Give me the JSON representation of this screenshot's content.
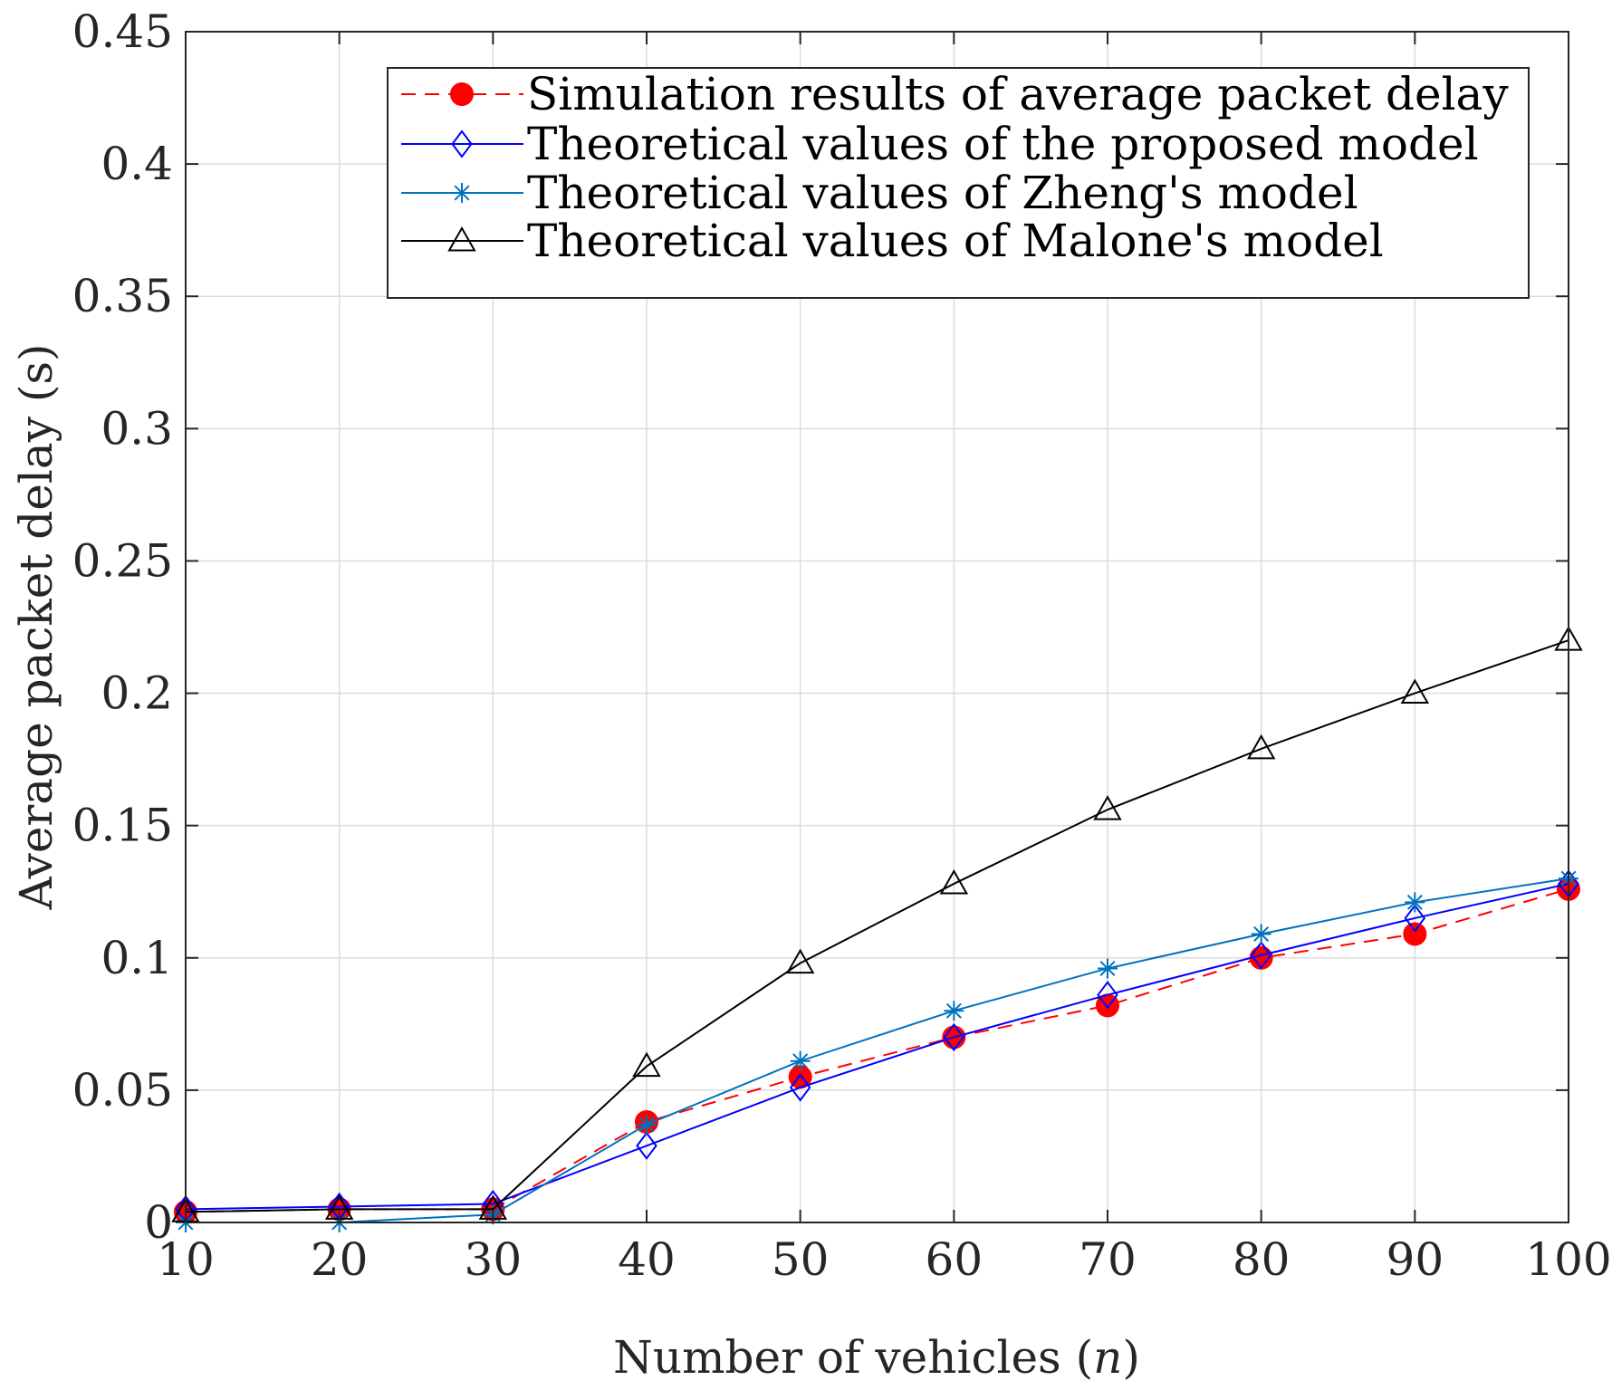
{
  "chart_data": {
    "type": "line",
    "title": "",
    "xlabel": "Number of vehicles (",
    "xlabel_var": "n",
    "xlabel_end": ")",
    "ylabel": "Average packet delay (s)",
    "xlim": [
      10,
      100
    ],
    "ylim": [
      0,
      0.45
    ],
    "grid": true,
    "legend_position": "top-right",
    "x": [
      10,
      20,
      30,
      40,
      50,
      60,
      70,
      80,
      90,
      100
    ],
    "x_tick_labels": [
      "10",
      "20",
      "30",
      "40",
      "50",
      "60",
      "70",
      "80",
      "90",
      "100"
    ],
    "y_ticks": [
      0,
      0.05,
      0.1,
      0.15,
      0.2,
      0.25,
      0.3,
      0.35,
      0.4,
      0.45
    ],
    "y_tick_labels": [
      "0",
      "0.05",
      "0.1",
      "0.15",
      "0.2",
      "0.25",
      "0.3",
      "0.35",
      "0.4",
      "0.45"
    ],
    "series": [
      {
        "name": "Simulation results of  average packet delay",
        "values": [
          0.004,
          0.005,
          0.005,
          0.038,
          0.055,
          0.07,
          0.082,
          0.1,
          0.109,
          0.126
        ],
        "color": "#ff0000",
        "line_style": "dashed",
        "marker": "filled-circle"
      },
      {
        "name": "Theoretical values of the proposed model",
        "values": [
          0.005,
          0.006,
          0.007,
          0.029,
          0.051,
          0.07,
          0.086,
          0.101,
          0.115,
          0.128
        ],
        "color": "#0000ff",
        "line_style": "solid",
        "marker": "diamond"
      },
      {
        "name": "Theoretical values of Zheng's model",
        "values": [
          0.0,
          0.0,
          0.003,
          0.037,
          0.061,
          0.08,
          0.096,
          0.109,
          0.121,
          0.13
        ],
        "color": "#0072bd",
        "line_style": "solid",
        "marker": "asterisk"
      },
      {
        "name": "Theoretical values of Malone's model",
        "values": [
          0.004,
          0.005,
          0.005,
          0.059,
          0.098,
          0.128,
          0.156,
          0.179,
          0.2,
          0.22
        ],
        "color": "#000000",
        "line_style": "solid",
        "marker": "triangle"
      }
    ]
  }
}
